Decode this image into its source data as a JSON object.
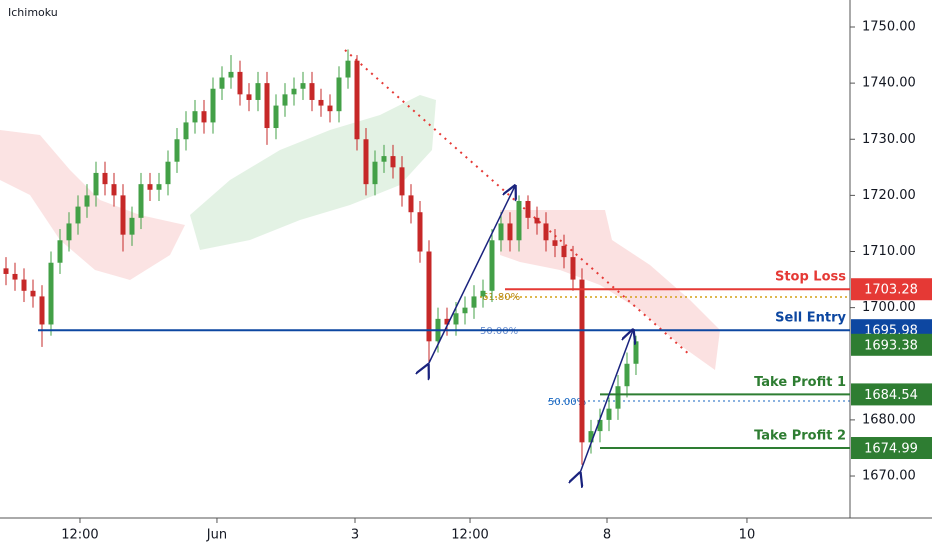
{
  "chart_data": {
    "type": "candlestick",
    "title": "Ichimoku",
    "up_color": "#43a047",
    "down_color": "#c62828",
    "opens": [
      1707,
      1706,
      1705,
      1703,
      1702,
      1697,
      1708,
      1712,
      1715,
      1718,
      1720,
      1724,
      1722,
      1720,
      1713,
      1716,
      1722,
      1721,
      1722,
      1726,
      1730,
      1733,
      1735,
      1733,
      1739,
      1741,
      1742,
      1738,
      1737,
      1740,
      1732,
      1736,
      1738,
      1739,
      1740,
      1737,
      1736,
      1735,
      1741,
      1744,
      1730,
      1722,
      1726,
      1727,
      1725,
      1720,
      1717,
      1710,
      1694,
      1698,
      1697,
      1699,
      1700,
      1702,
      1703,
      1712,
      1715,
      1712,
      1719,
      1716,
      1715,
      1712,
      1711,
      1709,
      1705,
      1676,
      1678,
      1680,
      1682,
      1686,
      1690
    ],
    "highs": [
      1709,
      1708,
      1707,
      1705,
      1704,
      1710,
      1714,
      1717,
      1720,
      1722,
      1726,
      1726,
      1724,
      1722,
      1718,
      1724,
      1724,
      1724,
      1728,
      1732,
      1735,
      1737,
      1737,
      1741,
      1743,
      1745,
      1744,
      1740,
      1742,
      1742,
      1738,
      1740,
      1741,
      1742,
      1742,
      1739,
      1738,
      1743,
      1746,
      1745,
      1732,
      1728,
      1729,
      1729,
      1727,
      1722,
      1719,
      1712,
      1700,
      1700,
      1701,
      1702,
      1704,
      1705,
      1714,
      1717,
      1717,
      1720,
      1720,
      1718,
      1717,
      1714,
      1713,
      1711,
      1707,
      1680,
      1682,
      1684,
      1688,
      1692,
      1695
    ],
    "lows": [
      1704,
      1703,
      1701,
      1700,
      1693,
      1695,
      1706,
      1710,
      1713,
      1716,
      1718,
      1720,
      1718,
      1710,
      1711,
      1714,
      1719,
      1719,
      1720,
      1724,
      1728,
      1731,
      1731,
      1731,
      1737,
      1739,
      1736,
      1735,
      1735,
      1729,
      1730,
      1734,
      1736,
      1737,
      1735,
      1734,
      1733,
      1733,
      1739,
      1728,
      1720,
      1720,
      1724,
      1723,
      1718,
      1715,
      1708,
      1690,
      1692,
      1695,
      1695,
      1697,
      1698,
      1700,
      1701,
      1710,
      1710,
      1710,
      1714,
      1713,
      1710,
      1709,
      1707,
      1703,
      1672,
      1674,
      1676,
      1678,
      1680,
      1684,
      1688
    ],
    "closes": [
      1706,
      1705,
      1703,
      1702,
      1697,
      1708,
      1712,
      1715,
      1718,
      1720,
      1724,
      1722,
      1720,
      1713,
      1716,
      1722,
      1721,
      1722,
      1726,
      1730,
      1733,
      1735,
      1733,
      1739,
      1741,
      1742,
      1738,
      1737,
      1740,
      1732,
      1736,
      1738,
      1739,
      1740,
      1737,
      1736,
      1735,
      1741,
      1744,
      1730,
      1722,
      1726,
      1727,
      1725,
      1720,
      1717,
      1710,
      1694,
      1698,
      1697,
      1699,
      1700,
      1702,
      1703,
      1712,
      1715,
      1712,
      1719,
      1716,
      1715,
      1712,
      1711,
      1709,
      1705,
      1676,
      1678,
      1680,
      1682,
      1686,
      1690,
      1694
    ],
    "xlim": [
      -0.667,
      93.78
    ],
    "xticks": [
      {
        "value": 8.22,
        "label": "12:00"
      },
      {
        "value": 23.44,
        "label": "Jun"
      },
      {
        "value": 38.78,
        "label": "3"
      },
      {
        "value": 51.56,
        "label": "12:00"
      },
      {
        "value": 66.78,
        "label": "8"
      },
      {
        "value": 82.33,
        "label": "10"
      }
    ],
    "ylim": [
      1662.52,
      1754.81
    ],
    "yticks": [
      {
        "value": 1670,
        "label": "1670.00"
      },
      {
        "value": 1680,
        "label": "1680.00"
      },
      {
        "value": 1700,
        "label": "1700.00"
      },
      {
        "value": 1710,
        "label": "1710.00"
      },
      {
        "value": 1720,
        "label": "1720.00"
      },
      {
        "value": 1730,
        "label": "1730.00"
      },
      {
        "value": 1740,
        "label": "1740.00"
      },
      {
        "value": 1750,
        "label": "1750.00"
      }
    ],
    "levels": [
      {
        "name": "Stop Loss",
        "value": 1703.28,
        "color": "#e53935"
      },
      {
        "name": "Sell Entry",
        "value": 1695.98,
        "color": "#0d47a1"
      },
      {
        "value": 1693.38,
        "color": "#2e7d32"
      },
      {
        "name": "Take Profit 1",
        "value": 1684.54,
        "color": "#2e7d32"
      },
      {
        "name": "Take Profit 2",
        "value": 1674.99,
        "color": "#2e7d32"
      }
    ],
    "fib_labels": [
      "61.80%",
      "50.00%",
      "50.00%"
    ]
  }
}
